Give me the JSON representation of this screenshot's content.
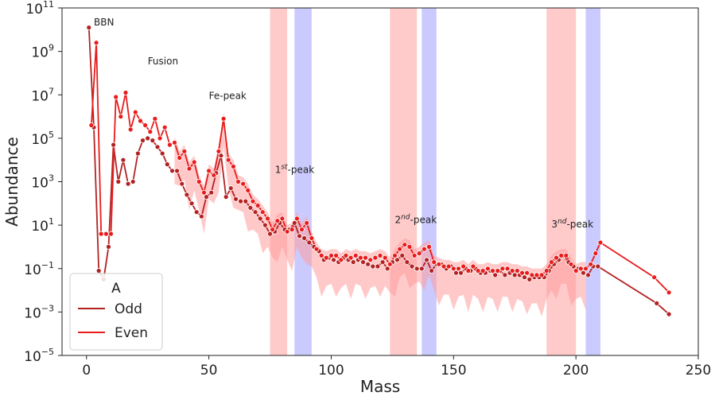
{
  "chart_data": {
    "type": "line",
    "title": "",
    "xlabel": "Mass",
    "ylabel": "Abundance",
    "xlim": [
      -10,
      250
    ],
    "ylim_log10": [
      -5,
      11
    ],
    "x_ticks": [
      0,
      50,
      100,
      150,
      200,
      250
    ],
    "x_tick_labels": [
      "0",
      "50",
      "100",
      "150",
      "200",
      "250"
    ],
    "y_tick_exponents": [
      -5,
      -3,
      -1,
      1,
      3,
      5,
      7,
      9,
      11
    ],
    "y_tick_base": "10",
    "y_tick_exponent_labels": [
      "−5",
      "−3",
      "−1",
      "1",
      "3",
      "5",
      "7",
      "9",
      "11"
    ],
    "scale_y": "log",
    "grid": false,
    "legend": {
      "title": "A",
      "placement": "lower-left",
      "entries": [
        "Odd",
        "Even"
      ]
    },
    "colors": {
      "odd": "#b22222",
      "even": "#e81c1c",
      "red_band": "#ffb3b3",
      "blue_band": "#b3b3ff",
      "spread": "#ff9c9c"
    },
    "bands": [
      {
        "x0": 75,
        "x1": 82,
        "color": "red"
      },
      {
        "x0": 85,
        "x1": 92,
        "color": "blue"
      },
      {
        "x0": 124,
        "x1": 135,
        "color": "red"
      },
      {
        "x0": 137,
        "x1": 143,
        "color": "blue"
      },
      {
        "x0": 188,
        "x1": 200,
        "color": "red"
      },
      {
        "x0": 204,
        "x1": 210,
        "color": "blue"
      }
    ],
    "annotations": [
      {
        "text": "BBN",
        "x": 3,
        "y_log10": 10.2
      },
      {
        "text": "Fusion",
        "x": 25,
        "y_log10": 8.4
      },
      {
        "text": "Fe-peak",
        "x": 50,
        "y_log10": 6.8
      },
      {
        "text": "1",
        "sup": "st",
        "tail": "-peak",
        "x": 77,
        "y_log10": 3.4
      },
      {
        "text": "2",
        "sup": "nd",
        "tail": "-peak",
        "x": 126,
        "y_log10": 1.1
      },
      {
        "text": "3",
        "sup": "nd",
        "tail": "-peak",
        "x": 190,
        "y_log10": 0.9
      }
    ],
    "series": [
      {
        "name": "Odd",
        "points": [
          [
            1,
            10.1
          ],
          [
            3,
            5.5
          ],
          [
            5,
            -1.1
          ],
          [
            7,
            -1.5
          ],
          [
            9,
            0.0
          ],
          [
            11,
            4.7
          ],
          [
            13,
            3.0
          ],
          [
            15,
            4.0
          ],
          [
            17,
            2.9
          ],
          [
            19,
            3.0
          ],
          [
            21,
            4.3
          ],
          [
            23,
            4.9
          ],
          [
            25,
            5.0
          ],
          [
            27,
            4.9
          ],
          [
            29,
            4.6
          ],
          [
            31,
            4.3
          ],
          [
            33,
            3.8
          ],
          [
            35,
            3.5
          ],
          [
            37,
            3.5
          ],
          [
            39,
            2.9
          ],
          [
            41,
            2.4
          ],
          [
            43,
            2.0
          ],
          [
            45,
            1.6
          ],
          [
            47,
            1.4
          ],
          [
            49,
            2.3
          ],
          [
            51,
            2.5
          ],
          [
            53,
            3.4
          ],
          [
            55,
            4.2
          ],
          [
            57,
            2.3
          ],
          [
            59,
            2.7
          ],
          [
            61,
            2.2
          ],
          [
            63,
            2.1
          ],
          [
            65,
            2.1
          ],
          [
            67,
            1.8
          ],
          [
            69,
            1.6
          ],
          [
            71,
            1.3
          ],
          [
            73,
            1.0
          ],
          [
            75,
            0.6
          ],
          [
            77,
            0.7
          ],
          [
            79,
            1.1
          ],
          [
            81,
            0.8
          ],
          [
            83,
            0.8
          ],
          [
            85,
            1.1
          ],
          [
            87,
            0.5
          ],
          [
            89,
            0.4
          ],
          [
            91,
            0.2
          ],
          [
            93,
            0.0
          ],
          [
            95,
            -0.2
          ],
          [
            97,
            -0.6
          ],
          [
            99,
            -0.5
          ],
          [
            101,
            -0.6
          ],
          [
            103,
            -0.7
          ],
          [
            105,
            -0.5
          ],
          [
            107,
            -0.6
          ],
          [
            109,
            -0.7
          ],
          [
            111,
            -0.6
          ],
          [
            113,
            -0.7
          ],
          [
            115,
            -0.8
          ],
          [
            117,
            -0.9
          ],
          [
            119,
            -0.9
          ],
          [
            121,
            -0.7
          ],
          [
            123,
            -1.0
          ],
          [
            125,
            -0.7
          ],
          [
            127,
            -0.6
          ],
          [
            129,
            -0.4
          ],
          [
            131,
            -0.7
          ],
          [
            133,
            -0.9
          ],
          [
            135,
            -1.0
          ],
          [
            137,
            -1.0
          ],
          [
            139,
            -0.6
          ],
          [
            141,
            -1.1
          ],
          [
            143,
            -0.8
          ],
          [
            145,
            -0.8
          ],
          [
            147,
            -1.0
          ],
          [
            149,
            -0.9
          ],
          [
            151,
            -1.2
          ],
          [
            153,
            -1.2
          ],
          [
            155,
            -1.0
          ],
          [
            157,
            -1.1
          ],
          [
            159,
            -1.0
          ],
          [
            161,
            -1.2
          ],
          [
            163,
            -1.2
          ],
          [
            165,
            -1.1
          ],
          [
            167,
            -1.3
          ],
          [
            169,
            -1.1
          ],
          [
            171,
            -1.3
          ],
          [
            173,
            -1.2
          ],
          [
            175,
            -1.3
          ],
          [
            177,
            -1.3
          ],
          [
            179,
            -1.4
          ],
          [
            181,
            -1.5
          ],
          [
            183,
            -1.4
          ],
          [
            185,
            -1.4
          ],
          [
            187,
            -1.4
          ],
          [
            189,
            -1.1
          ],
          [
            191,
            -0.8
          ],
          [
            193,
            -0.6
          ],
          [
            195,
            -0.4
          ],
          [
            197,
            -0.7
          ],
          [
            199,
            -0.9
          ],
          [
            201,
            -1.0
          ],
          [
            203,
            -1.2
          ],
          [
            205,
            -1.3
          ],
          [
            207,
            -0.9
          ],
          [
            209,
            -0.9
          ],
          [
            233,
            -2.6
          ],
          [
            238,
            -3.1
          ]
        ]
      },
      {
        "name": "Even",
        "points": [
          [
            2,
            5.6
          ],
          [
            4,
            9.4
          ],
          [
            6,
            0.6
          ],
          [
            8,
            0.6
          ],
          [
            10,
            0.6
          ],
          [
            12,
            6.9
          ],
          [
            14,
            6.0
          ],
          [
            16,
            7.1
          ],
          [
            18,
            5.4
          ],
          [
            20,
            6.2
          ],
          [
            22,
            5.8
          ],
          [
            24,
            5.6
          ],
          [
            26,
            5.3
          ],
          [
            28,
            5.9
          ],
          [
            30,
            5.0
          ],
          [
            32,
            5.5
          ],
          [
            34,
            4.7
          ],
          [
            36,
            4.8
          ],
          [
            38,
            4.1
          ],
          [
            40,
            4.4
          ],
          [
            42,
            3.6
          ],
          [
            44,
            3.9
          ],
          [
            46,
            3.0
          ],
          [
            48,
            2.5
          ],
          [
            50,
            3.5
          ],
          [
            52,
            3.3
          ],
          [
            54,
            4.4
          ],
          [
            56,
            5.9
          ],
          [
            58,
            4.0
          ],
          [
            60,
            3.7
          ],
          [
            62,
            3.0
          ],
          [
            64,
            2.9
          ],
          [
            66,
            2.6
          ],
          [
            68,
            2.1
          ],
          [
            70,
            1.9
          ],
          [
            72,
            1.6
          ],
          [
            74,
            1.3
          ],
          [
            76,
            0.8
          ],
          [
            78,
            1.2
          ],
          [
            80,
            1.3
          ],
          [
            82,
            0.7
          ],
          [
            84,
            0.8
          ],
          [
            86,
            1.3
          ],
          [
            88,
            0.8
          ],
          [
            90,
            1.1
          ],
          [
            92,
            0.4
          ],
          [
            94,
            -0.1
          ],
          [
            96,
            -0.4
          ],
          [
            98,
            -0.5
          ],
          [
            100,
            -0.4
          ],
          [
            102,
            -0.4
          ],
          [
            104,
            -0.6
          ],
          [
            106,
            -0.4
          ],
          [
            108,
            -0.5
          ],
          [
            110,
            -0.4
          ],
          [
            112,
            -0.5
          ],
          [
            114,
            -0.5
          ],
          [
            116,
            -0.6
          ],
          [
            118,
            -0.5
          ],
          [
            120,
            -0.4
          ],
          [
            122,
            -0.5
          ],
          [
            124,
            -0.8
          ],
          [
            126,
            -0.4
          ],
          [
            128,
            -0.1
          ],
          [
            130,
            0.1
          ],
          [
            132,
            0.0
          ],
          [
            134,
            -0.4
          ],
          [
            136,
            -0.3
          ],
          [
            138,
            -0.1
          ],
          [
            140,
            0.0
          ],
          [
            142,
            -0.7
          ],
          [
            144,
            -0.8
          ],
          [
            146,
            -0.9
          ],
          [
            148,
            -0.9
          ],
          [
            150,
            -1.0
          ],
          [
            152,
            -1.0
          ],
          [
            154,
            -0.9
          ],
          [
            156,
            -1.1
          ],
          [
            158,
            -0.9
          ],
          [
            160,
            -1.1
          ],
          [
            162,
            -1.1
          ],
          [
            164,
            -1.0
          ],
          [
            166,
            -1.1
          ],
          [
            168,
            -1.1
          ],
          [
            170,
            -1.0
          ],
          [
            172,
            -1.0
          ],
          [
            174,
            -1.1
          ],
          [
            176,
            -1.1
          ],
          [
            178,
            -1.2
          ],
          [
            180,
            -1.2
          ],
          [
            182,
            -1.3
          ],
          [
            184,
            -1.3
          ],
          [
            186,
            -1.3
          ],
          [
            188,
            -1.1
          ],
          [
            190,
            -0.7
          ],
          [
            192,
            -0.5
          ],
          [
            194,
            -0.4
          ],
          [
            196,
            -0.4
          ],
          [
            198,
            -0.8
          ],
          [
            200,
            -1.1
          ],
          [
            202,
            -1.0
          ],
          [
            204,
            -1.0
          ],
          [
            206,
            -0.8
          ],
          [
            208,
            -0.3
          ],
          [
            210,
            0.2
          ],
          [
            232,
            -1.4
          ],
          [
            238,
            -2.1
          ]
        ]
      }
    ],
    "spread_band": {
      "x_from": 36,
      "x_to": 204,
      "lower_offset": 1.3,
      "upper_offset": 0.3
    }
  }
}
